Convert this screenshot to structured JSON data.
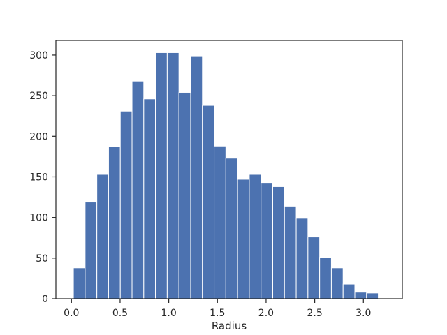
{
  "chart_data": {
    "type": "bar",
    "xlabel": "Radius",
    "ylabel": "",
    "xlim": [
      -0.16,
      3.4
    ],
    "ylim": [
      0,
      318
    ],
    "bar_color": "#4c72b0",
    "bar_edge_color": "#ffffff",
    "x_ticks": [
      0.0,
      0.5,
      1.0,
      1.5,
      2.0,
      2.5,
      3.0
    ],
    "x_tick_labels": [
      "0.0",
      "0.5",
      "1.0",
      "1.5",
      "2.0",
      "2.5",
      "3.0"
    ],
    "y_ticks": [
      0,
      50,
      100,
      150,
      200,
      250,
      300
    ],
    "y_tick_labels": [
      "0",
      "50",
      "100",
      "150",
      "200",
      "250",
      "300"
    ],
    "bins_start": 0.02,
    "bin_width": 0.1205,
    "values": [
      38,
      119,
      153,
      187,
      231,
      268,
      246,
      303,
      303,
      254,
      299,
      238,
      188,
      173,
      147,
      153,
      143,
      138,
      114,
      99,
      76,
      51,
      38,
      18,
      8,
      7
    ]
  }
}
